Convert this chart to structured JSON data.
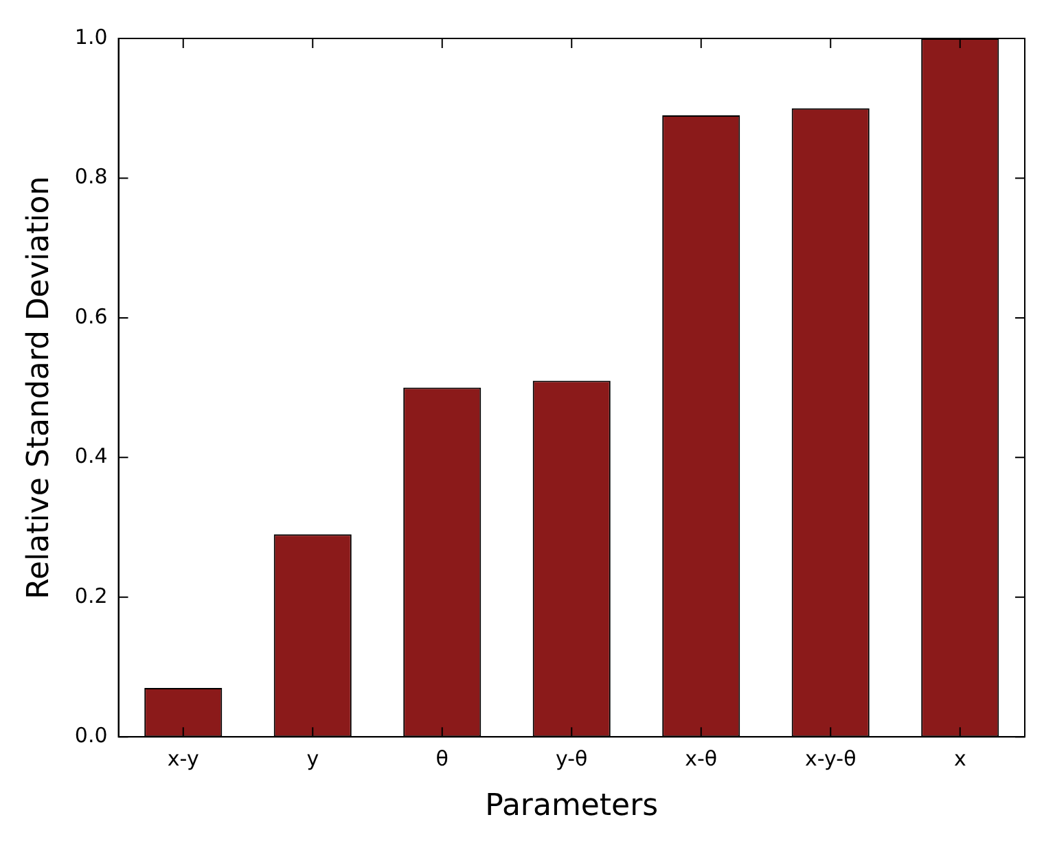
{
  "chart_data": {
    "type": "bar",
    "xlabel": "Parameters",
    "ylabel": "Relative Standard Deviation",
    "categories": [
      "x-y",
      "y",
      "θ",
      "y-θ",
      "x-θ",
      "x-y-θ",
      "x"
    ],
    "values": [
      0.07,
      0.29,
      0.5,
      0.51,
      0.89,
      0.9,
      1.0
    ],
    "color": "#8b1a1a",
    "ylim": [
      0,
      1
    ],
    "yticks": [
      {
        "value": 0,
        "label": "0.0"
      },
      {
        "value": 0.2,
        "label": "0.2"
      },
      {
        "value": 0.4,
        "label": "0.4"
      },
      {
        "value": 0.6,
        "label": "0.6"
      },
      {
        "value": 0.8,
        "label": "0.8"
      },
      {
        "value": 1,
        "label": "1.0"
      }
    ],
    "grid": false,
    "legend": false
  }
}
